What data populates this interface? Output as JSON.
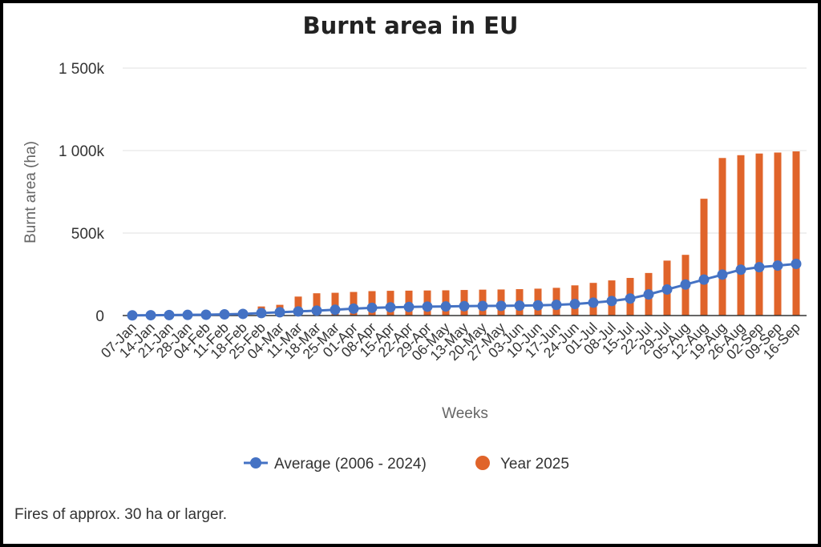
{
  "chart_data": {
    "type": "bar+line",
    "title": "Burnt area in EU",
    "xlabel": "Weeks",
    "ylabel": "Burnt area (ha)",
    "ylim": [
      0,
      1500000
    ],
    "yticks": [
      {
        "value": 0,
        "label": "0"
      },
      {
        "value": 500000,
        "label": "500k"
      },
      {
        "value": 1000000,
        "label": "1 000k"
      },
      {
        "value": 1500000,
        "label": "1 500k"
      }
    ],
    "categories": [
      "07-Jan",
      "14-Jan",
      "21-Jan",
      "28-Jan",
      "04-Feb",
      "11-Feb",
      "18-Feb",
      "25-Feb",
      "04-Mar",
      "11-Mar",
      "18-Mar",
      "25-Mar",
      "01-Apr",
      "08-Apr",
      "15-Apr",
      "22-Apr",
      "29-Apr",
      "06-May",
      "13-May",
      "20-May",
      "27-May",
      "03-Jun",
      "10-Jun",
      "17-Jun",
      "24-Jun",
      "01-Jul",
      "08-Jul",
      "15-Jul",
      "22-Jul",
      "29-Jul",
      "05-Aug",
      "12-Aug",
      "19-Aug",
      "26-Aug",
      "02-Sep",
      "09-Sep",
      "16-Sep"
    ],
    "series": [
      {
        "name": "Year 2025",
        "kind": "bar",
        "color": "#E0642A",
        "values": [
          2000,
          4000,
          6000,
          8000,
          10000,
          15000,
          25000,
          55000,
          65000,
          115000,
          135000,
          138000,
          143000,
          148000,
          150000,
          151000,
          152000,
          153000,
          155000,
          157000,
          158000,
          160000,
          163000,
          168000,
          183000,
          198000,
          213000,
          228000,
          258000,
          333000,
          368000,
          708000,
          955000,
          972000,
          982000,
          988000,
          995000
        ]
      },
      {
        "name": "Average (2006 - 2024)",
        "kind": "line",
        "color": "#4472C4",
        "values": [
          1000,
          2000,
          3000,
          4000,
          5000,
          7000,
          10000,
          15000,
          20000,
          25000,
          30000,
          35000,
          42000,
          47000,
          50000,
          52000,
          54000,
          55000,
          57000,
          58000,
          59000,
          60000,
          62000,
          65000,
          70000,
          78000,
          88000,
          103000,
          128000,
          158000,
          188000,
          218000,
          248000,
          278000,
          293000,
          303000,
          313000
        ]
      }
    ],
    "legend": {
      "placement": "bottom-center"
    }
  },
  "footnote": "Fires of approx. 30 ha or larger."
}
